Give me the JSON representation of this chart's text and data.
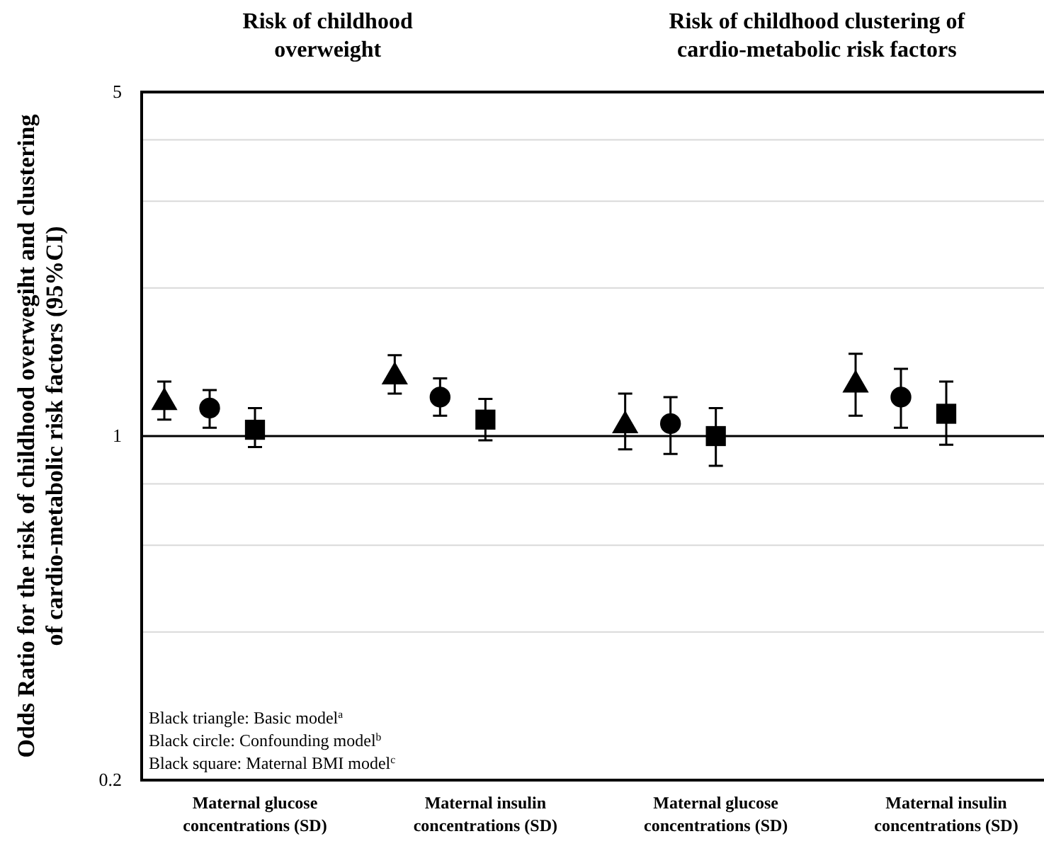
{
  "chart_data": {
    "type": "scatter",
    "ylabel": "Odds Ratio for the risk of childhood overwegiht and clustering of cardio-metabolic risk factors (95%CI)",
    "categories": [
      "Maternal glucose concentrations (SD)",
      "Maternal insulin concentrations (SD)",
      "Maternal glucose concentrations (SD)",
      "Maternal insulin concentrations (SD)"
    ],
    "series": [
      {
        "color": "#000000",
        "marker": "triangle",
        "values": [
          1.17,
          1.32,
          1.05,
          1.27
        ],
        "errors": [
          [
            1.08,
            1.29
          ],
          [
            1.22,
            1.46
          ],
          [
            0.94,
            1.22
          ],
          [
            1.1,
            1.47
          ]
        ]
      },
      {
        "color": "#000000",
        "marker": "circle",
        "values": [
          1.14,
          1.2,
          1.06,
          1.2
        ],
        "errors": [
          [
            1.04,
            1.24
          ],
          [
            1.1,
            1.31
          ],
          [
            0.92,
            1.2
          ],
          [
            1.04,
            1.37
          ]
        ]
      },
      {
        "color": "#000000",
        "marker": "square",
        "values": [
          1.03,
          1.08,
          1.0,
          1.11
        ],
        "errors": [
          [
            0.95,
            1.14
          ],
          [
            0.98,
            1.19
          ],
          [
            0.87,
            1.14
          ],
          [
            0.96,
            1.29
          ]
        ]
      }
    ],
    "ylim": [
      0.2,
      5
    ],
    "yticks": [
      0.2,
      {
        "value": 0.4,
        "label": null
      },
      {
        "value": 0.6,
        "label": null
      },
      {
        "value": 0.8,
        "label": null
      },
      1,
      {
        "value": 2,
        "label": null
      },
      {
        "value": 3,
        "label": null
      },
      {
        "value": 4,
        "label": null
      },
      5
    ],
    "log": true,
    "grid": "y",
    "ref_lines": [
      {
        "axis": "y",
        "value": 1,
        "color": "#000000"
      }
    ],
    "annotations": [
      "Risk of childhood overweight",
      "Risk of childhood clustering of cardio-metabolic risk factors",
      "Black triangle: Basic model$^{a}$",
      "Black circle: Confounding model$^{b}$",
      "Black square: Maternal BMI model$^{c}$"
    ]
  }
}
